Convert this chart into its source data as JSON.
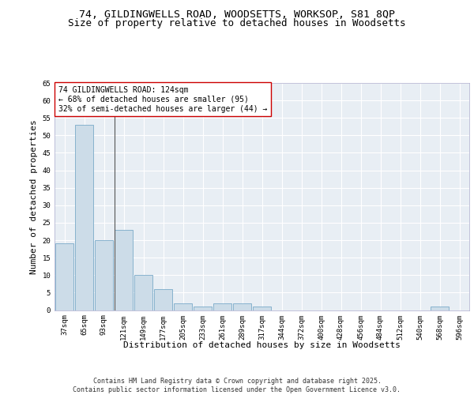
{
  "title_line1": "74, GILDINGWELLS ROAD, WOODSETTS, WORKSOP, S81 8QP",
  "title_line2": "Size of property relative to detached houses in Woodsetts",
  "xlabel": "Distribution of detached houses by size in Woodsetts",
  "ylabel": "Number of detached properties",
  "categories": [
    "37sqm",
    "65sqm",
    "93sqm",
    "121sqm",
    "149sqm",
    "177sqm",
    "205sqm",
    "233sqm",
    "261sqm",
    "289sqm",
    "317sqm",
    "344sqm",
    "372sqm",
    "400sqm",
    "428sqm",
    "456sqm",
    "484sqm",
    "512sqm",
    "540sqm",
    "568sqm",
    "596sqm"
  ],
  "values": [
    19,
    53,
    20,
    23,
    10,
    6,
    2,
    1,
    2,
    2,
    1,
    0,
    0,
    0,
    0,
    0,
    0,
    0,
    0,
    1,
    0
  ],
  "bar_color": "#ccdce8",
  "bar_edge_color": "#7aaac8",
  "vline_index": 3,
  "annotation_text": "74 GILDINGWELLS ROAD: 124sqm\n← 68% of detached houses are smaller (95)\n32% of semi-detached houses are larger (44) →",
  "annotation_box_color": "#ffffff",
  "annotation_border_color": "#cc0000",
  "ylim_max": 65,
  "yticks": [
    0,
    5,
    10,
    15,
    20,
    25,
    30,
    35,
    40,
    45,
    50,
    55,
    60,
    65
  ],
  "background_color": "#e8eef4",
  "grid_color": "#ffffff",
  "footer_text": "Contains HM Land Registry data © Crown copyright and database right 2025.\nContains public sector information licensed under the Open Government Licence v3.0.",
  "title_fontsize": 9.5,
  "subtitle_fontsize": 9,
  "axis_label_fontsize": 8,
  "tick_fontsize": 6.5,
  "annotation_fontsize": 7,
  "footer_fontsize": 6
}
